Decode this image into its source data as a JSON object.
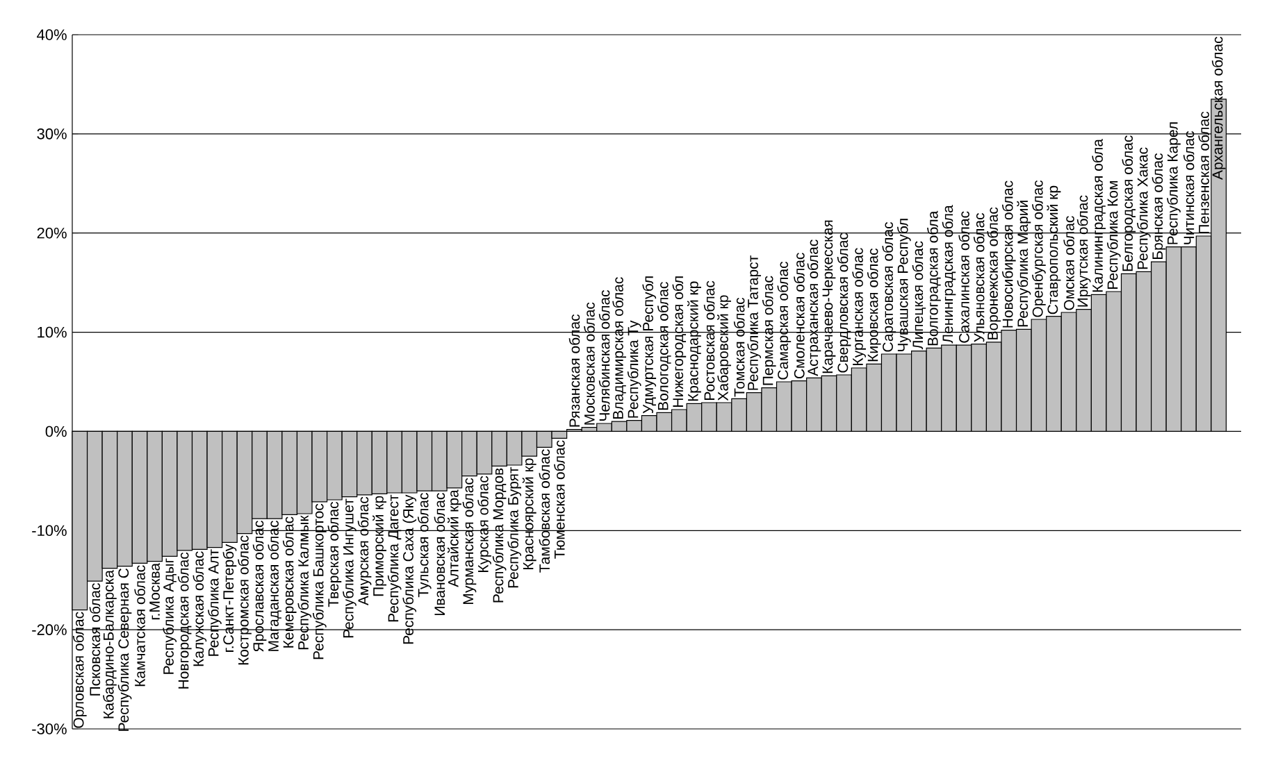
{
  "chart_data": {
    "type": "bar",
    "categories": [
      "Орловская облас",
      "Псковская облас",
      "Кабардино-Балкарска",
      "Республика Северная С",
      "Камчатская облас",
      "г.Москва",
      "Республика Адыг",
      "Новгородская облас",
      "Калужская облас",
      "Республика Алт",
      "г.Санкт-Петербу",
      "Костромская облас",
      "Ярославская облас",
      "Магаданская облас",
      "Кемеровская облас",
      "Республика Калмык",
      "Республика Башкортос",
      "Тверская облас",
      "Республика Ингушет",
      "Амурская облас",
      "Приморский кр",
      "Республика Дагест",
      "Республика Саха (Яку",
      "Тульская облас",
      "Ивановская облас",
      "Алтайский кра",
      "Мурманская облас",
      "Курская облас",
      "Республика Мордов",
      "Республика Бурят",
      "Красноярский кр",
      "Тамбовская облас",
      "Тюменская облас",
      "Рязанская облас",
      "Московская облас",
      "Челябинская облас",
      "Владимирская облас",
      "Республика Ту",
      "Удмуртская Республ",
      "Вологодская облас",
      "Нижегородская обл",
      "Краснодарский кр",
      "Ростовская облас",
      "Хабаровский кр",
      "Томская облас",
      "Республика Татарст",
      "Пермская облас",
      "Самарская облас",
      "Смоленская облас",
      "Астраханская облас",
      "Карачаево-Черкесская",
      "Свердловская облас",
      "Курганская облас",
      "Кировская облас",
      "Саратовская облас",
      "Чувашская Республ",
      "Липецкая облас",
      "Волгоградская обла",
      "Ленинградская обла",
      "Сахалинская облас",
      "Ульяновская облас",
      "Воронежская облас",
      "Новосибирская облас",
      "Республика Марий",
      "Оренбургская облас",
      "Ставропольский кр",
      "Омская облас",
      "Иркутская облас",
      "Калининградская обла",
      "Республика Ком",
      "Белгородская облас",
      "Республика Хакас",
      "Брянская облас",
      "Республика Карел",
      "Читинская облас",
      "Пензенская облас",
      "Архангельская облас"
    ],
    "values": [
      -18.0,
      -15.1,
      -13.8,
      -13.6,
      -13.3,
      -13.1,
      -12.6,
      -12.0,
      -11.9,
      -11.7,
      -11.2,
      -10.3,
      -8.8,
      -8.8,
      -8.4,
      -8.3,
      -7.1,
      -6.9,
      -6.6,
      -6.4,
      -6.3,
      -6.2,
      -6.2,
      -6.0,
      -6.0,
      -5.7,
      -4.5,
      -4.3,
      -3.5,
      -3.4,
      -2.5,
      -1.6,
      -0.7,
      0.2,
      0.4,
      0.8,
      1.0,
      1.1,
      1.6,
      1.9,
      2.2,
      2.8,
      2.9,
      2.9,
      3.3,
      3.9,
      4.4,
      5.0,
      5.1,
      5.4,
      5.6,
      5.7,
      6.4,
      6.8,
      7.8,
      7.8,
      8.1,
      8.4,
      8.7,
      8.7,
      8.8,
      9.0,
      10.2,
      10.3,
      11.3,
      11.6,
      12.0,
      12.3,
      13.8,
      14.1,
      15.9,
      16.1,
      17.1,
      18.6,
      18.6,
      19.7,
      33.5
    ],
    "color": "#c0c0c0",
    "ylim": [
      -30,
      40
    ],
    "yticks": [
      {
        "value": -30,
        "label": "-30%"
      },
      {
        "value": -20,
        "label": "-20%"
      },
      {
        "value": -10,
        "label": "-10%"
      },
      {
        "value": 0,
        "label": "0%"
      },
      {
        "value": 10,
        "label": "10%"
      },
      {
        "value": 20,
        "label": "20%"
      },
      {
        "value": 30,
        "label": "30%"
      },
      {
        "value": 40,
        "label": "40%"
      }
    ],
    "grid": "y"
  }
}
